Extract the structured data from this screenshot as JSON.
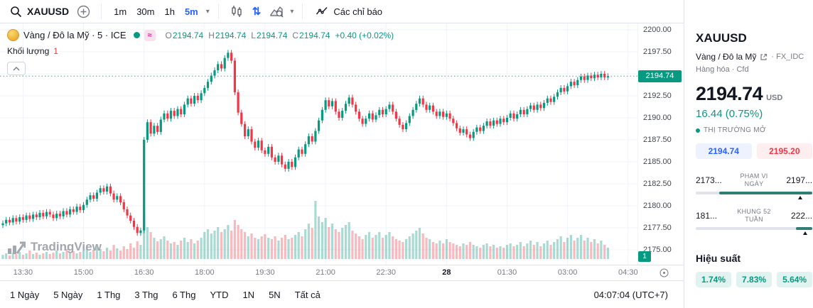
{
  "theme": {
    "up": "#089981",
    "down": "#f23645",
    "blue": "#2962ff",
    "text": "#131722",
    "muted": "#787b86"
  },
  "toolbar": {
    "symbol": "XAUUSD",
    "timeframes": [
      "1m",
      "30m",
      "1h",
      "5m"
    ],
    "active_timeframe": "5m",
    "indicators_label": "Các chỉ báo"
  },
  "legend": {
    "title": "Vàng / Đô la Mỹ · 5 · ICE",
    "ohlc": [
      {
        "k": "O",
        "v": "2194.74"
      },
      {
        "k": "H",
        "v": "2194.74"
      },
      {
        "k": "L",
        "v": "2194.74"
      },
      {
        "k": "C",
        "v": "2194.74"
      }
    ],
    "change": "+0.40 (+0.02%)",
    "volume_label": "Khối lượng",
    "volume_value": "1"
  },
  "axis": {
    "current_price": "2194.74",
    "volume_badge": "1"
  },
  "watermark": "TradingView",
  "bottom_bar": {
    "ranges": [
      "1 Ngày",
      "5 Ngày",
      "1 Thg",
      "3 Thg",
      "6 Thg",
      "YTD",
      "1N",
      "5N",
      "Tất cả"
    ],
    "clock": "04:07:04 (UTC+7)"
  },
  "panel": {
    "symbol": "XAUUSD",
    "name": "Vàng / Đô la Mỹ",
    "exchange": "· FX_IDC",
    "category": "Hàng hóa · Cfd",
    "price": "2194.74",
    "currency": "USD",
    "change": "16.44 (0.75%)",
    "market_status": "THỊ TRƯỜNG MỞ",
    "bid": "2194.74",
    "ask": "2195.20",
    "day_range": {
      "low": "2173...",
      "high": "2197...",
      "label_line1": "PHẠM VI",
      "label_line2": "NGÀY",
      "fill_start_pct": 20,
      "fill_end_pct": 100,
      "marker_pct": 88
    },
    "week52_range": {
      "low": "181...",
      "high": "222...",
      "label_line1": "KHUNG 52",
      "label_line2": "TUẦN",
      "fill_start_pct": 86,
      "fill_end_pct": 100,
      "marker_pct": 92
    },
    "performance_title": "Hiệu suất",
    "performance": [
      "1.74%",
      "7.83%",
      "5.64%"
    ]
  },
  "chart_data": {
    "type": "candlestick+volume",
    "symbol": "XAUUSD",
    "title": "Vàng / Đô la Mỹ · 5 · ICE",
    "interval_minutes": 5,
    "start_time": "13:00",
    "last": 2194.74,
    "open0": 2177.8,
    "ylim": [
      2173.3,
      2200.73
    ],
    "price_ticks": [
      2175,
      2177.5,
      2180,
      2182.5,
      2185,
      2187.5,
      2190,
      2192.5,
      2195,
      2197.5,
      2200
    ],
    "time_ticks": [
      {
        "i": 6,
        "label": "13:30"
      },
      {
        "i": 24,
        "label": "15:00"
      },
      {
        "i": 42,
        "label": "16:30"
      },
      {
        "i": 60,
        "label": "18:00"
      },
      {
        "i": 78,
        "label": "19:30"
      },
      {
        "i": 96,
        "label": "21:00"
      },
      {
        "i": 114,
        "label": "22:30"
      },
      {
        "i": 132,
        "label": "28",
        "bold": true
      },
      {
        "i": 150,
        "label": "01:30"
      },
      {
        "i": 168,
        "label": "03:00"
      },
      {
        "i": 186,
        "label": "04:30"
      }
    ],
    "closes": [
      2178.0,
      2178.4,
      2178.1,
      2178.6,
      2178.2,
      2178.7,
      2178.4,
      2178.9,
      2178.5,
      2179.0,
      2178.7,
      2179.2,
      2178.8,
      2179.3,
      2179.0,
      2178.6,
      2179.1,
      2178.8,
      2179.4,
      2179.0,
      2179.6,
      2179.3,
      2179.9,
      2179.5,
      2180.1,
      2180.7,
      2181.2,
      2180.8,
      2181.5,
      2182.0,
      2181.6,
      2182.2,
      2181.4,
      2180.7,
      2181.1,
      2180.4,
      2179.6,
      2178.9,
      2178.3,
      2177.6,
      2176.9,
      2177.2,
      2187.5,
      2189.5,
      2188.2,
      2189.1,
      2188.4,
      2189.8,
      2190.5,
      2189.9,
      2190.8,
      2190.2,
      2191.0,
      2190.4,
      2191.5,
      2192.2,
      2191.6,
      2192.5,
      2192.0,
      2192.8,
      2193.4,
      2194.1,
      2194.8,
      2195.4,
      2196.1,
      2195.6,
      2196.8,
      2197.4,
      2196.5,
      2192.9,
      2190.6,
      2189.3,
      2187.9,
      2188.7,
      2187.3,
      2186.6,
      2187.4,
      2186.3,
      2185.9,
      2186.7,
      2185.5,
      2185.0,
      2185.7,
      2184.7,
      2184.2,
      2185.0,
      2184.4,
      2185.5,
      2186.4,
      2185.9,
      2187.0,
      2187.9,
      2187.3,
      2188.5,
      2189.7,
      2190.9,
      2192.0,
      2191.3,
      2191.9,
      2190.7,
      2190.0,
      2190.8,
      2191.6,
      2192.3,
      2191.5,
      2190.7,
      2189.9,
      2189.3,
      2189.9,
      2190.5,
      2189.8,
      2190.3,
      2190.9,
      2190.4,
      2191.0,
      2191.5,
      2190.7,
      2189.9,
      2189.2,
      2188.7,
      2189.4,
      2190.2,
      2190.9,
      2191.6,
      2192.2,
      2191.5,
      2190.9,
      2191.4,
      2190.7,
      2190.2,
      2190.7,
      2190.1,
      2190.5,
      2189.9,
      2189.4,
      2188.8,
      2188.3,
      2188.7,
      2188.1,
      2187.7,
      2188.4,
      2188.9,
      2188.5,
      2189.1,
      2189.6,
      2189.1,
      2189.7,
      2189.3,
      2189.9,
      2189.5,
      2190.0,
      2190.5,
      2189.9,
      2190.4,
      2190.9,
      2190.4,
      2191.0,
      2191.4,
      2190.9,
      2191.5,
      2191.1,
      2191.7,
      2192.2,
      2191.8,
      2192.4,
      2192.9,
      2193.4,
      2193.0,
      2193.6,
      2194.1,
      2193.7,
      2194.3,
      2194.7,
      2194.3,
      2194.8,
      2194.5,
      2194.9,
      2194.6,
      2195.0,
      2194.6,
      2194.74
    ],
    "volumes": [
      6,
      8,
      5,
      9,
      7,
      10,
      6,
      8,
      12,
      7,
      9,
      6,
      8,
      10,
      7,
      9,
      12,
      8,
      10,
      14,
      9,
      11,
      8,
      10,
      12,
      15,
      10,
      13,
      18,
      14,
      11,
      16,
      12,
      20,
      15,
      12,
      18,
      14,
      22,
      16,
      25,
      20,
      65,
      45,
      38,
      30,
      25,
      28,
      32,
      26,
      22,
      24,
      20,
      26,
      30,
      24,
      28,
      22,
      26,
      30,
      38,
      42,
      36,
      40,
      45,
      38,
      42,
      48,
      40,
      55,
      48,
      42,
      38,
      32,
      36,
      30,
      28,
      32,
      35,
      30,
      28,
      32,
      26,
      30,
      34,
      28,
      30,
      34,
      38,
      32,
      42,
      50,
      44,
      82,
      60,
      52,
      58,
      45,
      50,
      42,
      38,
      44,
      48,
      52,
      40,
      36,
      32,
      28,
      34,
      38,
      30,
      34,
      38,
      30,
      34,
      38,
      32,
      28,
      26,
      24,
      28,
      32,
      36,
      40,
      44,
      36,
      30,
      28,
      24,
      22,
      26,
      22,
      28,
      24,
      22,
      20,
      18,
      22,
      20,
      24,
      20,
      18,
      16,
      20,
      22,
      18,
      20,
      16,
      18,
      16,
      20,
      22,
      18,
      20,
      24,
      18,
      22,
      26,
      20,
      24,
      18,
      22,
      26,
      20,
      24,
      28,
      32,
      24,
      30,
      34,
      26,
      30,
      34,
      26,
      30,
      24,
      28,
      22,
      26,
      20,
      16
    ],
    "colors": {
      "up": "#089981",
      "down": "#f23645",
      "vol_up": "rgba(8,153,129,0.35)",
      "vol_down": "rgba(242,54,69,0.35)",
      "grid": "#f0f3fa"
    }
  }
}
